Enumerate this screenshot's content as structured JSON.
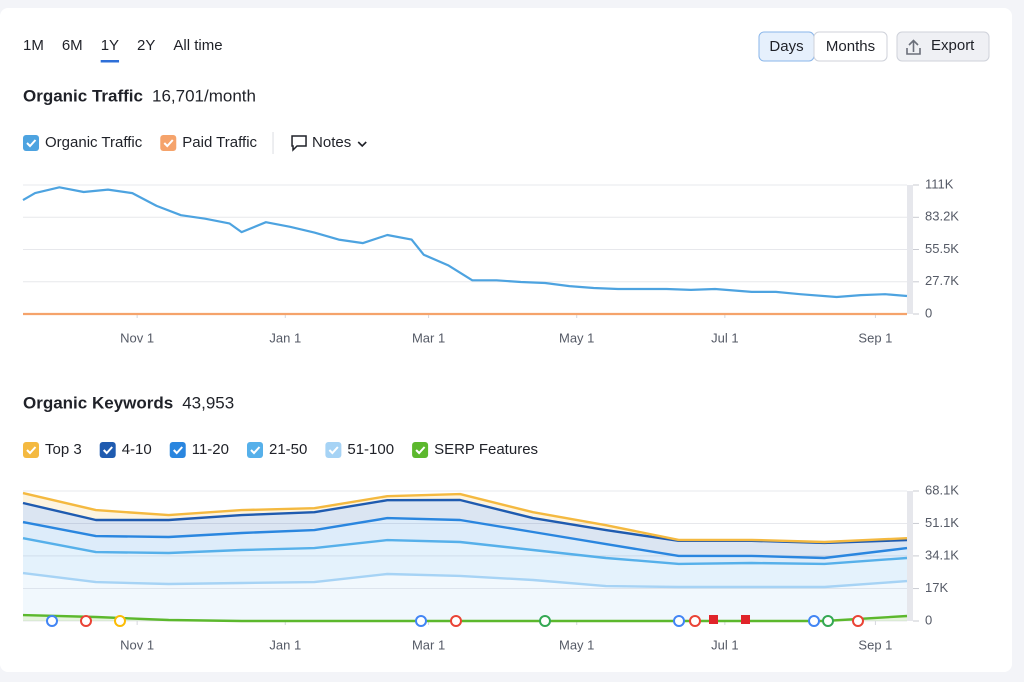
{
  "header": {
    "periods": [
      "1M",
      "6M",
      "1Y",
      "2Y",
      "All time"
    ],
    "selected_period": 2,
    "granularity": [
      "Days",
      "Months"
    ],
    "selected_granularity": 0,
    "export": "Export"
  },
  "chart_data": [
    {
      "type": "line",
      "title": "Organic Traffic",
      "subtitle": "16,701/month",
      "notes": "Notes",
      "x": [
        0,
        5,
        15,
        25,
        35,
        45,
        55,
        65,
        75,
        85,
        90,
        100,
        110,
        120,
        130,
        140,
        150,
        160,
        165,
        175,
        185,
        195,
        205,
        215,
        225,
        235,
        245,
        255,
        265,
        275,
        285,
        300,
        310,
        320,
        335,
        345,
        355,
        364
      ],
      "xlim": [
        0,
        364
      ],
      "xticks": [
        {
          "value": 47,
          "label": "Nov 1"
        },
        {
          "value": 108,
          "label": "Jan 1"
        },
        {
          "value": 167,
          "label": "Mar 1"
        },
        {
          "value": 228,
          "label": "May 1"
        },
        {
          "value": 289,
          "label": "Jul 1"
        },
        {
          "value": 351,
          "label": "Sep 1"
        }
      ],
      "ylim": [
        0,
        111000
      ],
      "yticks": [
        0,
        {
          "value": 27700,
          "label": "27.7K"
        },
        {
          "value": 55500,
          "label": "55.5K"
        },
        {
          "value": 83200,
          "label": "83.2K"
        },
        {
          "value": 111000,
          "label": "111K"
        }
      ],
      "grid": true,
      "series": [
        {
          "name": "Organic Traffic",
          "color": "#4da3e0",
          "values": [
            98000,
            104000,
            109000,
            105000,
            107000,
            104000,
            93000,
            85000,
            82000,
            78000,
            70500,
            79000,
            75000,
            70000,
            64000,
            61000,
            68000,
            64000,
            51000,
            42000,
            29000,
            29000,
            27500,
            26700,
            24000,
            22400,
            21500,
            21500,
            21500,
            20700,
            21500,
            19000,
            19000,
            17000,
            14600,
            16300,
            17000,
            15500
          ]
        },
        {
          "name": "Paid Traffic",
          "color": "#f5a36b",
          "values": [
            0,
            0,
            0,
            0,
            0,
            0,
            0,
            0,
            0,
            0,
            0,
            0,
            0,
            0,
            0,
            0,
            0,
            0,
            0,
            0,
            0,
            0,
            0,
            0,
            0,
            0,
            0,
            0,
            0,
            0,
            0,
            0,
            0,
            0,
            0,
            0,
            0,
            0
          ]
        }
      ]
    },
    {
      "type": "area",
      "stacked": true,
      "title": "Organic Keywords",
      "subtitle": "43,953",
      "x": [
        0,
        30,
        60,
        90,
        120,
        150,
        180,
        210,
        240,
        270,
        300,
        330,
        364
      ],
      "xlim": [
        0,
        364
      ],
      "xticks": [
        {
          "value": 47,
          "label": "Nov 1"
        },
        {
          "value": 108,
          "label": "Jan 1"
        },
        {
          "value": 167,
          "label": "Mar 1"
        },
        {
          "value": 228,
          "label": "May 1"
        },
        {
          "value": 289,
          "label": "Jul 1"
        },
        {
          "value": 351,
          "label": "Sep 1"
        }
      ],
      "ylim": [
        0,
        68100
      ],
      "yticks": [
        0,
        {
          "value": 17000,
          "label": "17K"
        },
        {
          "value": 34100,
          "label": "34.1K"
        },
        {
          "value": 51100,
          "label": "51.1K"
        },
        {
          "value": 68100,
          "label": "68.1K"
        }
      ],
      "grid": true,
      "series": [
        {
          "name": "Top 3",
          "color": "#f4b940",
          "values": [
            5200,
            5200,
            2600,
            2600,
            2100,
            2100,
            3100,
            3100,
            2600,
            500,
            500,
            500,
            1000
          ]
        },
        {
          "name": "4-10",
          "color": "#1f5bb0",
          "values": [
            10000,
            8400,
            8900,
            9400,
            9400,
            9400,
            10500,
            7300,
            7300,
            7900,
            7900,
            7900,
            4200
          ]
        },
        {
          "name": "11-20",
          "color": "#2a86df",
          "values": [
            8400,
            8400,
            8400,
            8900,
            9400,
            11500,
            11500,
            9400,
            7300,
            4200,
            3700,
            3100,
            5200
          ]
        },
        {
          "name": "21-50",
          "color": "#56b0ea",
          "values": [
            18300,
            15700,
            16200,
            17300,
            17800,
            17800,
            17800,
            15700,
            14700,
            12100,
            12600,
            12100,
            12100
          ]
        },
        {
          "name": "51-100",
          "color": "#a6d3f5",
          "values": [
            22000,
            18300,
            18900,
            19900,
            20400,
            24600,
            23600,
            21500,
            18300,
            17800,
            17800,
            17800,
            18300
          ]
        },
        {
          "name": "SERP Features",
          "color": "#5cb82d",
          "values": [
            3100,
            2100,
            500,
            0,
            0,
            0,
            0,
            0,
            0,
            0,
            0,
            0,
            2600
          ]
        }
      ]
    }
  ]
}
